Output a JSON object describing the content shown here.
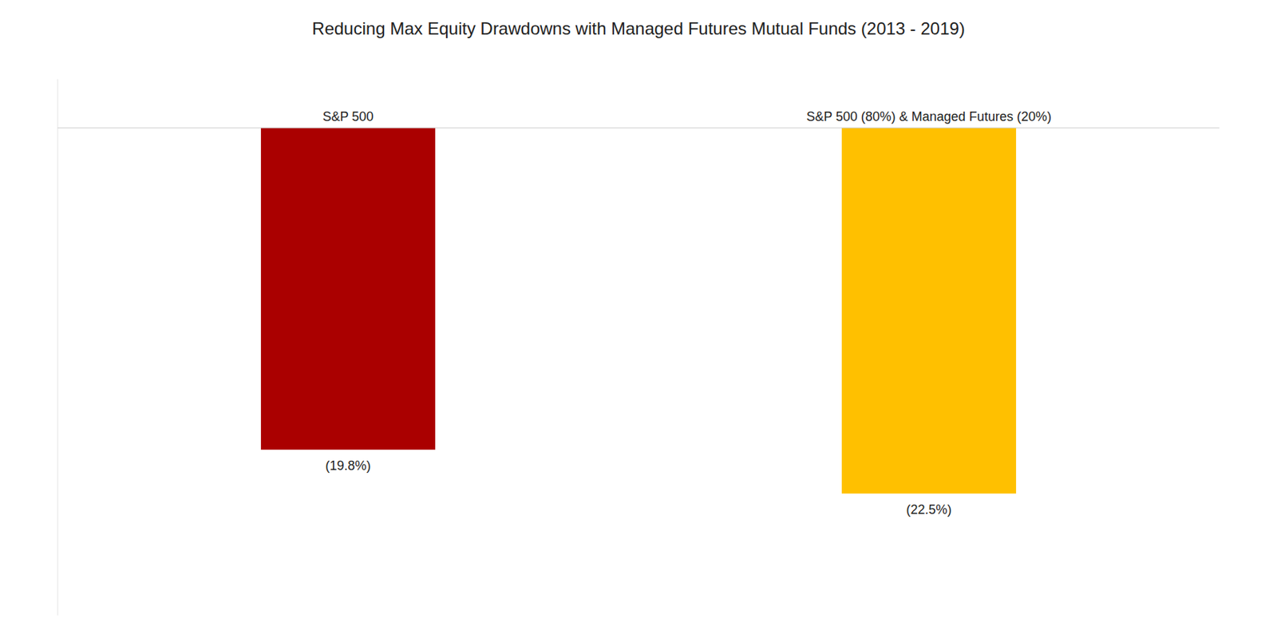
{
  "chart_data": {
    "type": "bar",
    "title": "Reducing Max Equity Drawdowns with Managed Futures Mutual Funds (2013 - 2019)",
    "categories": [
      "S&P 500",
      "S&P 500 (80%) & Managed Futures (20%)"
    ],
    "values": [
      -19.8,
      -22.5
    ],
    "value_labels": [
      "(19.8%)",
      "(22.5%)"
    ],
    "colors": [
      "#AA0000",
      "#FFC000"
    ],
    "ylim": [
      -30,
      3
    ],
    "tick_labels": false,
    "data_labels": true,
    "grid": false
  }
}
